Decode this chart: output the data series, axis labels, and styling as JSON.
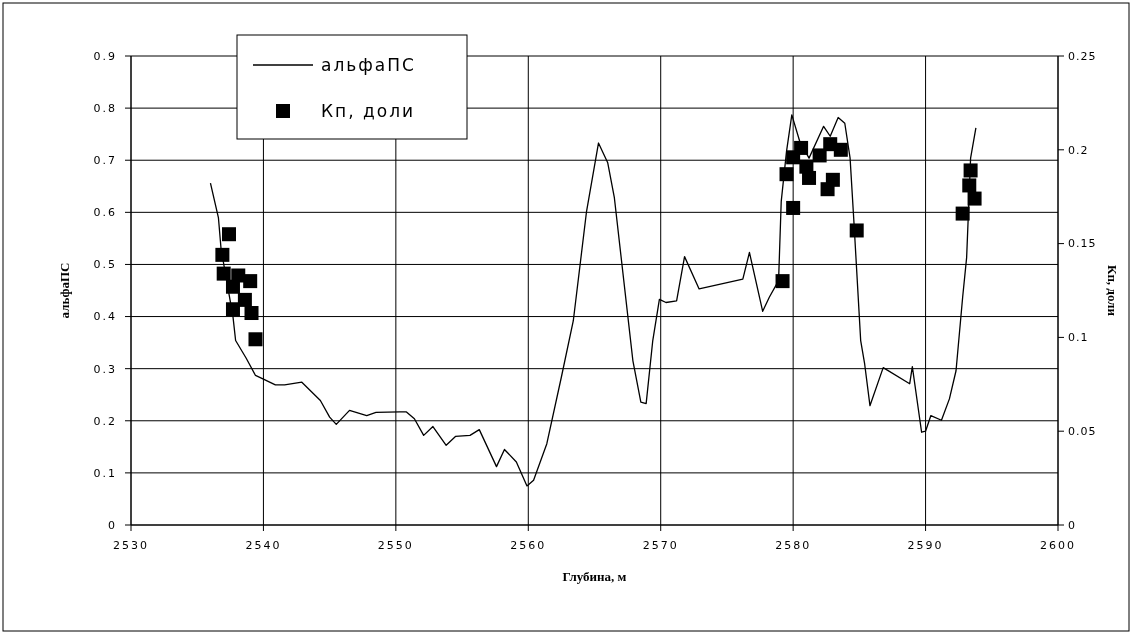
{
  "chart_data": {
    "type": "line",
    "xlabel": "Глубина, м",
    "ylabel": "альфаПС",
    "y2label": "Кп, доли",
    "xlim": [
      2530,
      2600
    ],
    "xticks": [
      2530,
      2540,
      2550,
      2560,
      2570,
      2580,
      2590,
      2600
    ],
    "ylim": [
      0,
      0.9
    ],
    "yticks": [
      0,
      0.1,
      0.2,
      0.3,
      0.4,
      0.5,
      0.6,
      0.7,
      0.8,
      0.9
    ],
    "y2lim": [
      0,
      0.25
    ],
    "y2ticks": [
      0,
      0.05,
      0.1,
      0.15,
      0.2,
      0.25
    ],
    "grid": true,
    "legend": "top left",
    "series": [
      {
        "name": "альфаПС",
        "color": "#000000",
        "marker": "none",
        "line_style": "solid",
        "x": [
          2536.0,
          2536.6,
          2536.8,
          2537.7,
          2537.9,
          2538.7,
          2539.4,
          2540.0,
          2540.9,
          2541.6,
          2542.9,
          2544.3,
          2545.0,
          2545.5,
          2546.5,
          2547.8,
          2548.5,
          2550.3,
          2550.8,
          2551.4,
          2552.1,
          2552.8,
          2553.8,
          2554.5,
          2555.6,
          2556.3,
          2557.6,
          2558.2,
          2559.1,
          2559.9,
          2560.4,
          2561.4,
          2562.5,
          2563.4,
          2564.4,
          2565.3,
          2566.0,
          2566.5,
          2567.9,
          2568.5,
          2568.9,
          2569.4,
          2569.9,
          2570.4,
          2571.2,
          2571.8,
          2572.9,
          2576.2,
          2576.7,
          2577.7,
          2578.2,
          2578.9,
          2579.1,
          2579.5,
          2579.9,
          2580.5,
          2581.2,
          2582.3,
          2582.8,
          2583.4,
          2583.9,
          2584.3,
          2584.6,
          2585.1,
          2585.4,
          2585.8,
          2586.8,
          2588.8,
          2589.0,
          2589.7,
          2590.0,
          2590.4,
          2591.2,
          2591.8,
          2592.3,
          2592.8,
          2593.1,
          2593.4,
          2593.8
        ],
        "values": [
          0.656,
          0.59,
          0.53,
          0.4,
          0.354,
          0.32,
          0.287,
          0.28,
          0.269,
          0.269,
          0.274,
          0.239,
          0.207,
          0.193,
          0.22,
          0.21,
          0.216,
          0.217,
          0.217,
          0.204,
          0.172,
          0.189,
          0.153,
          0.17,
          0.172,
          0.183,
          0.112,
          0.145,
          0.121,
          0.075,
          0.086,
          0.156,
          0.284,
          0.392,
          0.602,
          0.733,
          0.695,
          0.628,
          0.315,
          0.236,
          0.233,
          0.354,
          0.433,
          0.427,
          0.43,
          0.515,
          0.453,
          0.472,
          0.523,
          0.41,
          0.437,
          0.469,
          0.621,
          0.717,
          0.787,
          0.736,
          0.704,
          0.765,
          0.746,
          0.782,
          0.771,
          0.704,
          0.577,
          0.354,
          0.309,
          0.229,
          0.302,
          0.271,
          0.304,
          0.178,
          0.18,
          0.21,
          0.201,
          0.242,
          0.296,
          0.437,
          0.513,
          0.704,
          0.762
        ]
      },
      {
        "name": "Кп, доли",
        "type": "scatter",
        "axis": "y2",
        "color": "#000000",
        "marker": "square",
        "x": [
          2537.4,
          2536.9,
          2537.0,
          2538.1,
          2539.0,
          2537.7,
          2538.6,
          2537.7,
          2539.1,
          2539.4,
          2579.2,
          2580.0,
          2579.5,
          2580.0,
          2580.6,
          2581.0,
          2582.0,
          2582.6,
          2583.0,
          2582.8,
          2583.6,
          2581.2,
          2584.8,
          2593.4,
          2593.3,
          2593.7,
          2592.8
        ],
        "values": [
          0.155,
          0.144,
          0.134,
          0.133,
          0.13,
          0.127,
          0.12,
          0.115,
          0.113,
          0.099,
          0.13,
          0.169,
          0.187,
          0.196,
          0.201,
          0.191,
          0.197,
          0.179,
          0.184,
          0.203,
          0.2,
          0.185,
          0.157,
          0.189,
          0.181,
          0.174,
          0.166
        ]
      }
    ]
  }
}
